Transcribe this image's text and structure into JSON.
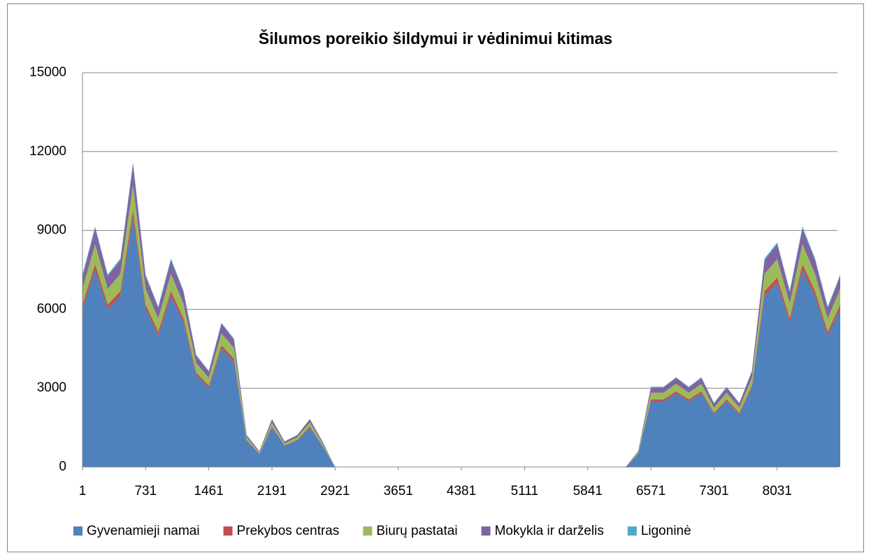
{
  "chart_data": {
    "type": "stacked_area",
    "title": "Šilumos poreikio šildymui ir vėdinimui kitimas",
    "x": [
      1,
      147,
      293,
      439,
      585,
      731,
      877,
      1023,
      1169,
      1315,
      1461,
      1607,
      1753,
      1899,
      2045,
      2191,
      2337,
      2483,
      2629,
      2775,
      2921,
      3067,
      3213,
      3359,
      3505,
      3651,
      3797,
      3943,
      4089,
      4235,
      4381,
      4527,
      4673,
      4819,
      4965,
      5111,
      5257,
      5403,
      5549,
      5695,
      5841,
      5987,
      6133,
      6279,
      6425,
      6571,
      6717,
      6863,
      7009,
      7155,
      7301,
      7447,
      7593,
      7739,
      7885,
      8031,
      8177,
      8323,
      8469,
      8615,
      8760
    ],
    "xlim": [
      1,
      8760
    ],
    "xticks": [
      1,
      731,
      1461,
      2191,
      2921,
      3651,
      4381,
      5111,
      5841,
      6571,
      7301,
      8031
    ],
    "ylim": [
      0,
      15000
    ],
    "yticks": [
      0,
      3000,
      6000,
      9000,
      12000,
      15000
    ],
    "grid": true,
    "legend": "bottom",
    "series": [
      {
        "name": "Gyvenamieji namai",
        "color": "#4f81bd",
        "values": [
          6000,
          7500,
          6000,
          6500,
          9500,
          6000,
          5000,
          6500,
          5500,
          3500,
          3000,
          4500,
          4000,
          1000,
          500,
          1500,
          800,
          1000,
          1500,
          800,
          0,
          0,
          0,
          0,
          0,
          0,
          0,
          0,
          0,
          0,
          0,
          0,
          0,
          0,
          0,
          0,
          0,
          0,
          0,
          0,
          0,
          0,
          0,
          0,
          500,
          2500,
          2500,
          2800,
          2500,
          2800,
          2000,
          2500,
          2000,
          3000,
          6500,
          7000,
          5500,
          7500,
          6500,
          5000,
          6000
        ]
      },
      {
        "name": "Prekybos centras",
        "color": "#c0504d",
        "values": [
          180,
          225,
          180,
          195,
          285,
          180,
          150,
          195,
          165,
          105,
          90,
          135,
          120,
          30,
          15,
          45,
          24,
          30,
          45,
          24,
          0,
          0,
          0,
          0,
          0,
          0,
          0,
          0,
          0,
          0,
          0,
          0,
          0,
          0,
          0,
          0,
          0,
          0,
          0,
          0,
          0,
          0,
          0,
          0,
          15,
          75,
          75,
          84,
          75,
          84,
          60,
          75,
          60,
          90,
          195,
          210,
          165,
          225,
          195,
          150,
          180
        ]
      },
      {
        "name": "Biurų pastatai",
        "color": "#9bbb59",
        "values": [
          600,
          750,
          600,
          650,
          950,
          600,
          500,
          650,
          550,
          350,
          300,
          450,
          400,
          100,
          50,
          150,
          80,
          100,
          150,
          80,
          0,
          0,
          0,
          0,
          0,
          0,
          0,
          0,
          0,
          0,
          0,
          0,
          0,
          0,
          0,
          0,
          0,
          0,
          0,
          0,
          0,
          0,
          0,
          0,
          50,
          250,
          250,
          280,
          250,
          280,
          200,
          250,
          200,
          300,
          650,
          700,
          550,
          750,
          650,
          500,
          600
        ]
      },
      {
        "name": "Mokykla ir darželis",
        "color": "#8064a2",
        "values": [
          480,
          600,
          480,
          520,
          760,
          480,
          400,
          520,
          440,
          280,
          240,
          360,
          320,
          80,
          40,
          120,
          64,
          80,
          120,
          64,
          0,
          0,
          0,
          0,
          0,
          0,
          0,
          0,
          0,
          0,
          0,
          0,
          0,
          0,
          0,
          0,
          0,
          0,
          0,
          0,
          0,
          0,
          0,
          0,
          40,
          200,
          200,
          224,
          200,
          224,
          160,
          200,
          160,
          240,
          520,
          560,
          440,
          600,
          520,
          400,
          480
        ]
      },
      {
        "name": "Ligoninė",
        "color": "#4bacc6",
        "values": [
          60,
          75,
          60,
          65,
          95,
          60,
          50,
          65,
          55,
          35,
          30,
          45,
          40,
          10,
          5,
          15,
          8,
          10,
          15,
          8,
          0,
          0,
          0,
          0,
          0,
          0,
          0,
          0,
          0,
          0,
          0,
          0,
          0,
          0,
          0,
          0,
          0,
          0,
          0,
          0,
          0,
          0,
          0,
          0,
          5,
          25,
          25,
          28,
          25,
          28,
          20,
          25,
          20,
          30,
          65,
          70,
          55,
          75,
          65,
          50,
          60
        ]
      }
    ]
  }
}
